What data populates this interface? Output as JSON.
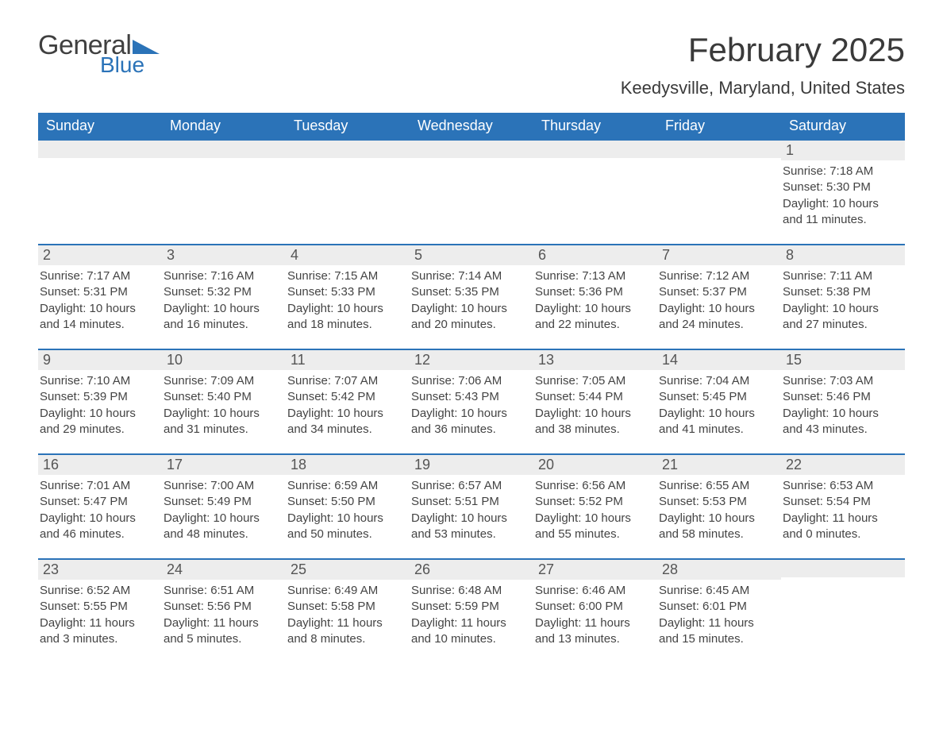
{
  "logo": {
    "text1": "General",
    "text2": "Blue",
    "accent_color": "#2b73b8"
  },
  "title": "February 2025",
  "location": "Keedysville, Maryland, United States",
  "colors": {
    "header_bg": "#2b73b8",
    "header_fg": "#ffffff",
    "daybar_bg": "#ededed",
    "text": "#424242",
    "row_border": "#2b73b8"
  },
  "fonts": {
    "title_size_pt": 32,
    "location_size_pt": 16,
    "dayheader_size_pt": 14,
    "body_size_pt": 11
  },
  "day_headers": [
    "Sunday",
    "Monday",
    "Tuesday",
    "Wednesday",
    "Thursday",
    "Friday",
    "Saturday"
  ],
  "weeks": [
    [
      {
        "n": "",
        "sunrise": "",
        "sunset": "",
        "daylight": ""
      },
      {
        "n": "",
        "sunrise": "",
        "sunset": "",
        "daylight": ""
      },
      {
        "n": "",
        "sunrise": "",
        "sunset": "",
        "daylight": ""
      },
      {
        "n": "",
        "sunrise": "",
        "sunset": "",
        "daylight": ""
      },
      {
        "n": "",
        "sunrise": "",
        "sunset": "",
        "daylight": ""
      },
      {
        "n": "",
        "sunrise": "",
        "sunset": "",
        "daylight": ""
      },
      {
        "n": "1",
        "sunrise": "Sunrise: 7:18 AM",
        "sunset": "Sunset: 5:30 PM",
        "daylight": "Daylight: 10 hours and 11 minutes."
      }
    ],
    [
      {
        "n": "2",
        "sunrise": "Sunrise: 7:17 AM",
        "sunset": "Sunset: 5:31 PM",
        "daylight": "Daylight: 10 hours and 14 minutes."
      },
      {
        "n": "3",
        "sunrise": "Sunrise: 7:16 AM",
        "sunset": "Sunset: 5:32 PM",
        "daylight": "Daylight: 10 hours and 16 minutes."
      },
      {
        "n": "4",
        "sunrise": "Sunrise: 7:15 AM",
        "sunset": "Sunset: 5:33 PM",
        "daylight": "Daylight: 10 hours and 18 minutes."
      },
      {
        "n": "5",
        "sunrise": "Sunrise: 7:14 AM",
        "sunset": "Sunset: 5:35 PM",
        "daylight": "Daylight: 10 hours and 20 minutes."
      },
      {
        "n": "6",
        "sunrise": "Sunrise: 7:13 AM",
        "sunset": "Sunset: 5:36 PM",
        "daylight": "Daylight: 10 hours and 22 minutes."
      },
      {
        "n": "7",
        "sunrise": "Sunrise: 7:12 AM",
        "sunset": "Sunset: 5:37 PM",
        "daylight": "Daylight: 10 hours and 24 minutes."
      },
      {
        "n": "8",
        "sunrise": "Sunrise: 7:11 AM",
        "sunset": "Sunset: 5:38 PM",
        "daylight": "Daylight: 10 hours and 27 minutes."
      }
    ],
    [
      {
        "n": "9",
        "sunrise": "Sunrise: 7:10 AM",
        "sunset": "Sunset: 5:39 PM",
        "daylight": "Daylight: 10 hours and 29 minutes."
      },
      {
        "n": "10",
        "sunrise": "Sunrise: 7:09 AM",
        "sunset": "Sunset: 5:40 PM",
        "daylight": "Daylight: 10 hours and 31 minutes."
      },
      {
        "n": "11",
        "sunrise": "Sunrise: 7:07 AM",
        "sunset": "Sunset: 5:42 PM",
        "daylight": "Daylight: 10 hours and 34 minutes."
      },
      {
        "n": "12",
        "sunrise": "Sunrise: 7:06 AM",
        "sunset": "Sunset: 5:43 PM",
        "daylight": "Daylight: 10 hours and 36 minutes."
      },
      {
        "n": "13",
        "sunrise": "Sunrise: 7:05 AM",
        "sunset": "Sunset: 5:44 PM",
        "daylight": "Daylight: 10 hours and 38 minutes."
      },
      {
        "n": "14",
        "sunrise": "Sunrise: 7:04 AM",
        "sunset": "Sunset: 5:45 PM",
        "daylight": "Daylight: 10 hours and 41 minutes."
      },
      {
        "n": "15",
        "sunrise": "Sunrise: 7:03 AM",
        "sunset": "Sunset: 5:46 PM",
        "daylight": "Daylight: 10 hours and 43 minutes."
      }
    ],
    [
      {
        "n": "16",
        "sunrise": "Sunrise: 7:01 AM",
        "sunset": "Sunset: 5:47 PM",
        "daylight": "Daylight: 10 hours and 46 minutes."
      },
      {
        "n": "17",
        "sunrise": "Sunrise: 7:00 AM",
        "sunset": "Sunset: 5:49 PM",
        "daylight": "Daylight: 10 hours and 48 minutes."
      },
      {
        "n": "18",
        "sunrise": "Sunrise: 6:59 AM",
        "sunset": "Sunset: 5:50 PM",
        "daylight": "Daylight: 10 hours and 50 minutes."
      },
      {
        "n": "19",
        "sunrise": "Sunrise: 6:57 AM",
        "sunset": "Sunset: 5:51 PM",
        "daylight": "Daylight: 10 hours and 53 minutes."
      },
      {
        "n": "20",
        "sunrise": "Sunrise: 6:56 AM",
        "sunset": "Sunset: 5:52 PM",
        "daylight": "Daylight: 10 hours and 55 minutes."
      },
      {
        "n": "21",
        "sunrise": "Sunrise: 6:55 AM",
        "sunset": "Sunset: 5:53 PM",
        "daylight": "Daylight: 10 hours and 58 minutes."
      },
      {
        "n": "22",
        "sunrise": "Sunrise: 6:53 AM",
        "sunset": "Sunset: 5:54 PM",
        "daylight": "Daylight: 11 hours and 0 minutes."
      }
    ],
    [
      {
        "n": "23",
        "sunrise": "Sunrise: 6:52 AM",
        "sunset": "Sunset: 5:55 PM",
        "daylight": "Daylight: 11 hours and 3 minutes."
      },
      {
        "n": "24",
        "sunrise": "Sunrise: 6:51 AM",
        "sunset": "Sunset: 5:56 PM",
        "daylight": "Daylight: 11 hours and 5 minutes."
      },
      {
        "n": "25",
        "sunrise": "Sunrise: 6:49 AM",
        "sunset": "Sunset: 5:58 PM",
        "daylight": "Daylight: 11 hours and 8 minutes."
      },
      {
        "n": "26",
        "sunrise": "Sunrise: 6:48 AM",
        "sunset": "Sunset: 5:59 PM",
        "daylight": "Daylight: 11 hours and 10 minutes."
      },
      {
        "n": "27",
        "sunrise": "Sunrise: 6:46 AM",
        "sunset": "Sunset: 6:00 PM",
        "daylight": "Daylight: 11 hours and 13 minutes."
      },
      {
        "n": "28",
        "sunrise": "Sunrise: 6:45 AM",
        "sunset": "Sunset: 6:01 PM",
        "daylight": "Daylight: 11 hours and 15 minutes."
      },
      {
        "n": "",
        "sunrise": "",
        "sunset": "",
        "daylight": ""
      }
    ]
  ]
}
